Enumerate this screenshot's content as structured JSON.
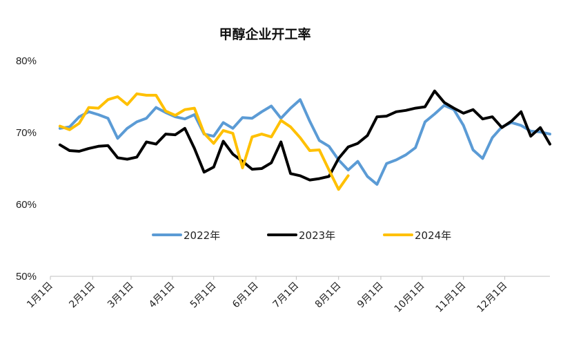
{
  "chart_data": {
    "type": "line",
    "title": "甲醇企业开工率",
    "xlabel": "",
    "ylabel": "",
    "y_tick_labels": [
      "80%",
      "70%",
      "60%",
      "50%"
    ],
    "y_tick_values": [
      80,
      70,
      60,
      50
    ],
    "ylim": [
      50,
      80
    ],
    "x_tick_labels": [
      "1月1日",
      "2月1日",
      "3月1日",
      "4月1日",
      "5月1日",
      "6月1日",
      "7月1日",
      "8月1日",
      "9月1日",
      "10月1日",
      "11月1日",
      "12月1日"
    ],
    "x_unit": "week",
    "xlim": [
      1,
      53
    ],
    "month_start_week": [
      1,
      5.4,
      9.4,
      13.7,
      18,
      22.4,
      26.6,
      31,
      35.4,
      39.7,
      44,
      48.3
    ],
    "grid": false,
    "legend_position": "center",
    "series": [
      {
        "name": "2022年",
        "color": "#5B9BD5",
        "x": [
          2,
          3,
          4,
          5,
          6,
          7,
          8,
          9,
          10,
          11,
          12,
          13,
          14,
          15,
          16,
          17,
          18,
          19,
          20,
          21,
          22,
          23,
          24,
          25,
          26,
          27,
          28,
          29,
          30,
          31,
          32,
          33,
          34,
          35,
          36,
          37,
          38,
          39,
          40,
          41,
          42,
          43,
          44,
          45,
          46,
          47,
          48,
          49,
          50,
          51,
          52,
          53
        ],
        "values": [
          70.6,
          70.8,
          72.2,
          72.9,
          72.5,
          72.0,
          69.2,
          70.6,
          71.5,
          72.0,
          73.5,
          72.8,
          72.2,
          71.9,
          72.5,
          69.8,
          69.5,
          71.4,
          70.6,
          72.1,
          72.0,
          72.9,
          73.7,
          72.0,
          73.4,
          74.6,
          71.6,
          68.9,
          68.1,
          66.2,
          64.8,
          66.0,
          63.9,
          62.8,
          65.7,
          66.2,
          66.9,
          67.9,
          71.5,
          72.6,
          73.8,
          73.2,
          71.0,
          67.6,
          66.4,
          69.3,
          70.8,
          71.4,
          71.0,
          70.2,
          70.1,
          69.8
        ]
      },
      {
        "name": "2023年",
        "color": "#000000",
        "x": [
          2,
          3,
          4,
          5,
          6,
          7,
          8,
          9,
          10,
          11,
          12,
          13,
          14,
          15,
          16,
          17,
          18,
          19,
          20,
          21,
          22,
          23,
          24,
          25,
          26,
          27,
          28,
          29,
          30,
          31,
          32,
          33,
          34,
          35,
          36,
          37,
          38,
          39,
          40,
          41,
          42,
          43,
          44,
          45,
          46,
          47,
          48,
          49,
          50,
          51,
          52,
          53
        ],
        "values": [
          68.3,
          67.5,
          67.4,
          67.8,
          68.1,
          68.2,
          66.5,
          66.3,
          66.6,
          68.7,
          68.4,
          69.8,
          69.7,
          70.6,
          67.8,
          64.5,
          65.2,
          68.8,
          67.0,
          66.0,
          64.9,
          65.0,
          65.8,
          68.7,
          64.3,
          64.0,
          63.4,
          63.6,
          63.9,
          66.4,
          68.0,
          68.5,
          69.6,
          72.2,
          72.3,
          72.9,
          73.1,
          73.4,
          73.6,
          75.8,
          74.2,
          73.4,
          72.7,
          73.2,
          71.9,
          72.2,
          70.7,
          71.6,
          72.9,
          69.5,
          70.7,
          68.4
        ]
      },
      {
        "name": "2024年",
        "color": "#FFC000",
        "x": [
          2,
          3,
          4,
          5,
          6,
          7,
          8,
          9,
          10,
          11,
          12,
          13,
          14,
          15,
          16,
          17,
          18,
          19,
          20,
          21,
          22,
          23,
          24,
          25,
          26,
          27,
          28,
          29,
          30,
          31,
          32
        ],
        "values": [
          70.9,
          70.4,
          71.3,
          73.5,
          73.4,
          74.6,
          75.0,
          73.9,
          75.4,
          75.2,
          75.2,
          73.0,
          72.4,
          73.2,
          73.4,
          69.9,
          68.5,
          70.3,
          69.9,
          65.1,
          69.4,
          69.8,
          69.4,
          71.7,
          70.8,
          69.3,
          67.5,
          67.6,
          64.8,
          62.1,
          64.0
        ]
      }
    ]
  }
}
